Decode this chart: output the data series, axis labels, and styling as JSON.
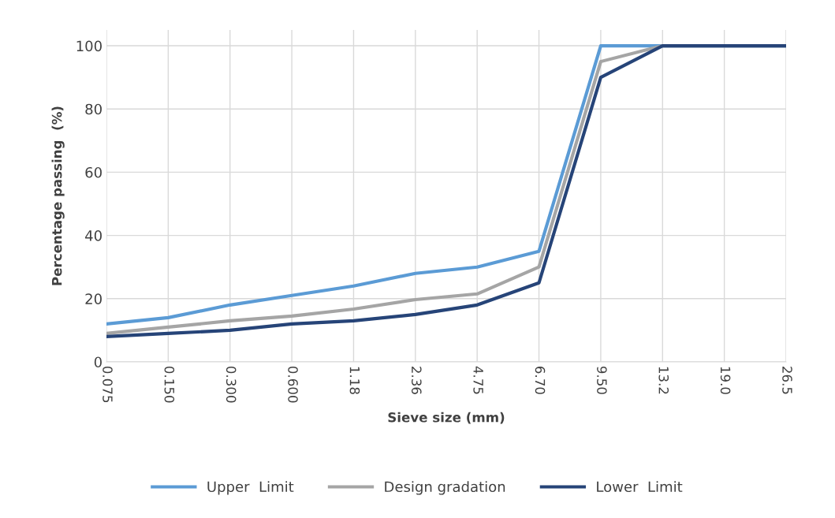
{
  "chart_data": {
    "type": "line",
    "xlabel": "Sieve size (mm)",
    "ylabel": "Percentage passing  (%)",
    "categories": [
      "0.075",
      "0.150",
      "0.300",
      "0.600",
      "1.18",
      "2.36",
      "4.75",
      "6.70",
      "9.50",
      "13.2",
      "19.0",
      "26.5"
    ],
    "series": [
      {
        "name": "Upper  Limit",
        "color": "#5b9bd5",
        "values": [
          12,
          14,
          18,
          21,
          24,
          28,
          30,
          35,
          100,
          100,
          100,
          100
        ]
      },
      {
        "name": "Design gradation",
        "color": "#a5a5a5",
        "values": [
          9,
          11,
          13,
          14.5,
          16.7,
          19.7,
          21.5,
          30,
          95,
          100,
          100,
          100
        ]
      },
      {
        "name": "Lower  Limit",
        "color": "#264478",
        "values": [
          8,
          9,
          10,
          12,
          13,
          15,
          18,
          25,
          90,
          100,
          100,
          100
        ]
      }
    ],
    "ylim": [
      0,
      105
    ],
    "yticks": [
      0,
      20,
      40,
      60,
      80,
      100
    ],
    "grid": true,
    "legend": "bottom",
    "marker": "none",
    "line_style": "solid"
  }
}
